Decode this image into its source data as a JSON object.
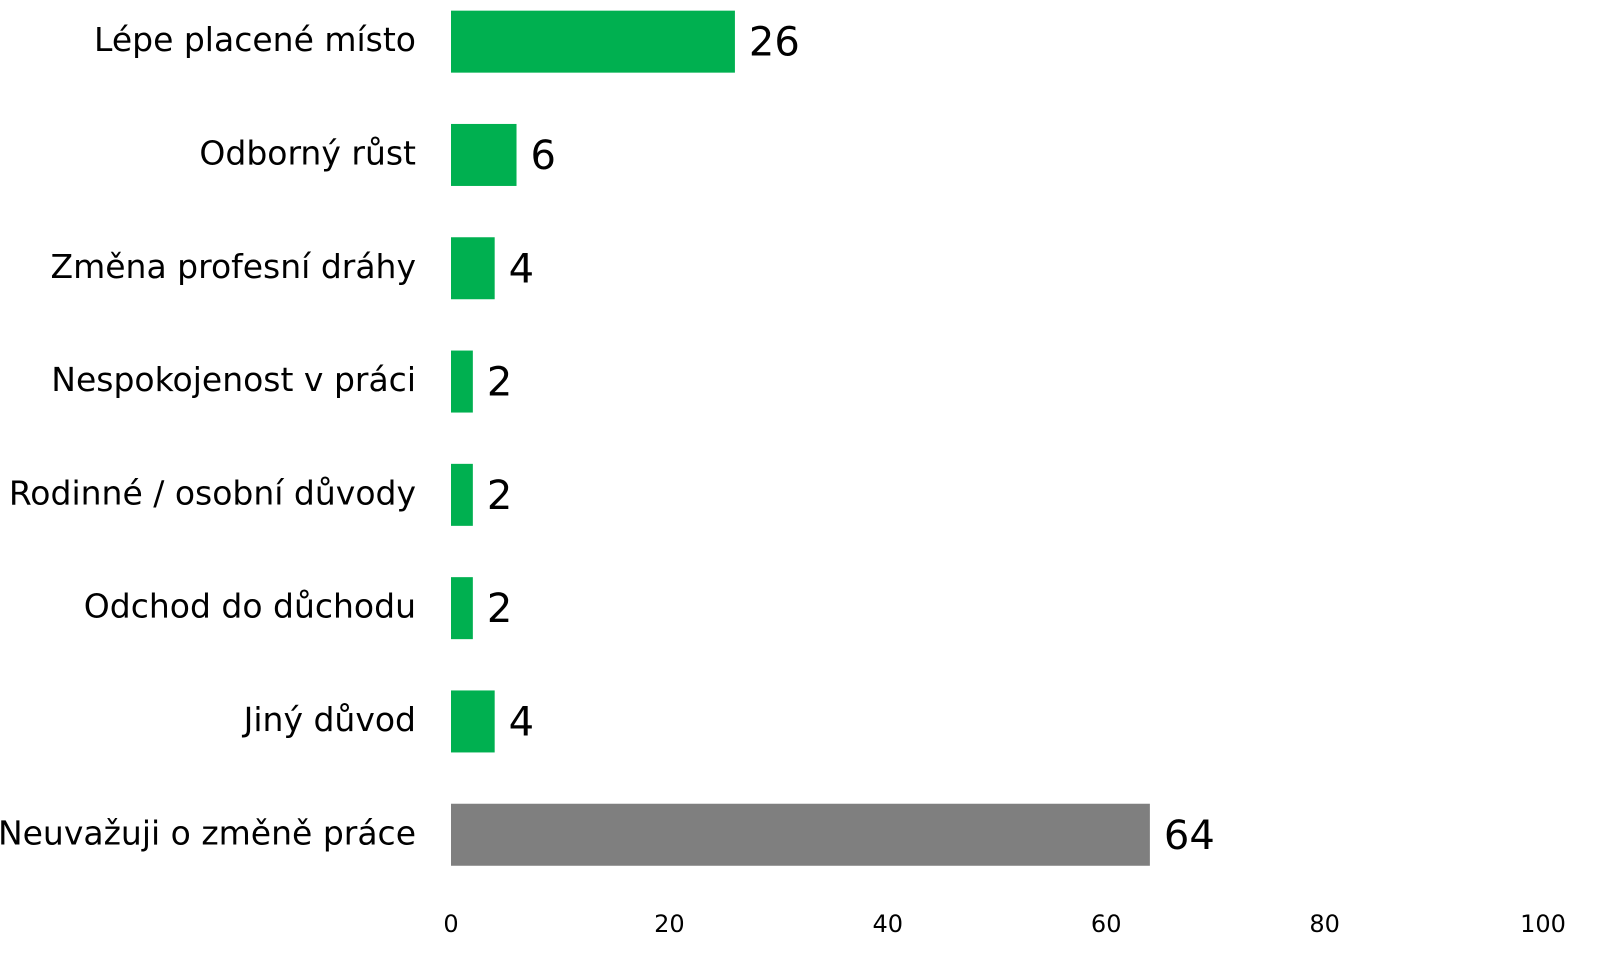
{
  "chart_data": {
    "type": "hbar",
    "categories": [
      "Lépe placené místo",
      "Odborný růst",
      "Změna profesní dráhy",
      "Nespokojenost v práci",
      "Rodinné / osobní důvody",
      "Odchod do důchodu",
      "Jiný důvod",
      "Neuvažuji o změně práce"
    ],
    "values": [
      26,
      6,
      4,
      2,
      2,
      2,
      4,
      64
    ],
    "colors": [
      "#00b050",
      "#00b050",
      "#00b050",
      "#00b050",
      "#00b050",
      "#00b050",
      "#00b050",
      "#7f7f7f"
    ],
    "xlim": [
      0,
      100
    ],
    "xticks": [
      0,
      20,
      40,
      60,
      80,
      100
    ],
    "grid": false
  }
}
